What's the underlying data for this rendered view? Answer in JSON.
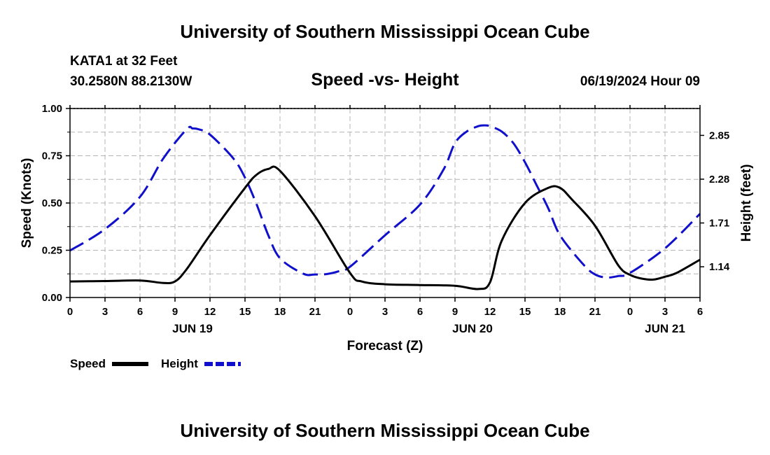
{
  "page": {
    "title": "University of Southern Mississippi Ocean Cube",
    "footer_title": "University of Southern Mississippi Ocean Cube",
    "station": "KATA1 at 32 Feet",
    "coords": "30.2580N  88.2130W",
    "datetime": "06/19/2024 Hour 09"
  },
  "chart_data": {
    "type": "line",
    "title": "Speed -vs- Height",
    "xlabel": "Forecast (Z)",
    "ylabel": "Speed (Knots)",
    "y2label": "Height (feet)",
    "x_range_hours": [
      0,
      54
    ],
    "x_tick_labels": [
      "0",
      "3",
      "6",
      "9",
      "12",
      "15",
      "18",
      "21",
      "0",
      "3",
      "6",
      "9",
      "12",
      "15",
      "18",
      "21",
      "0",
      "3",
      "6"
    ],
    "date_labels": [
      {
        "label": "JUN 19",
        "hour": 10.5
      },
      {
        "label": "JUN 20",
        "hour": 34.5
      },
      {
        "label": "JUN 21",
        "hour": 51
      }
    ],
    "ylim": [
      0,
      1.0
    ],
    "y_ticks": [
      "0.00",
      "0.25",
      "0.50",
      "0.75",
      "1.00"
    ],
    "y_tick_values": [
      0,
      0.25,
      0.5,
      0.75,
      1.0
    ],
    "y2lim": [
      0.74,
      3.2
    ],
    "y2_ticks": [
      "1.14",
      "1.71",
      "2.28",
      "2.85"
    ],
    "y2_tick_values": [
      1.14,
      1.71,
      2.28,
      2.85
    ],
    "series": [
      {
        "name": "Speed",
        "axis": "left",
        "color": "#000000",
        "dash": "solid",
        "x": [
          0,
          3,
          6,
          8,
          9,
          10,
          12,
          15,
          16,
          17,
          18,
          21,
          24,
          25,
          27,
          30,
          33,
          35,
          36,
          37,
          39,
          41,
          42,
          43,
          45,
          47,
          48,
          49,
          50,
          51,
          52,
          54
        ],
        "y": [
          0.085,
          0.087,
          0.09,
          0.077,
          0.085,
          0.15,
          0.33,
          0.58,
          0.65,
          0.68,
          0.67,
          0.43,
          0.13,
          0.085,
          0.07,
          0.066,
          0.062,
          0.045,
          0.08,
          0.3,
          0.5,
          0.58,
          0.58,
          0.52,
          0.38,
          0.17,
          0.12,
          0.1,
          0.095,
          0.11,
          0.13,
          0.2
        ]
      },
      {
        "name": "Height",
        "axis": "right",
        "color": "#1010cc",
        "dash": "dashed",
        "x": [
          0,
          3,
          6,
          8,
          10,
          10.5,
          11,
          12,
          14,
          15,
          16,
          17,
          18,
          20,
          21,
          22,
          23,
          24,
          27,
          30,
          32,
          33,
          34,
          35,
          35.5,
          36,
          37,
          38,
          39,
          40,
          41,
          42,
          44,
          45,
          46,
          47,
          48,
          51,
          54
        ],
        "y": [
          1.35,
          1.63,
          2.05,
          2.55,
          2.93,
          2.94,
          2.93,
          2.86,
          2.55,
          2.3,
          1.95,
          1.55,
          1.25,
          1.05,
          1.04,
          1.045,
          1.08,
          1.14,
          1.55,
          1.95,
          2.4,
          2.75,
          2.9,
          2.97,
          2.98,
          2.97,
          2.9,
          2.75,
          2.5,
          2.2,
          1.9,
          1.55,
          1.17,
          1.04,
          1.0,
          1.02,
          1.06,
          1.38,
          1.83
        ]
      }
    ],
    "legend": [
      {
        "label": "Speed",
        "color": "#000000",
        "dash": "solid"
      },
      {
        "label": "Height",
        "color": "#1010cc",
        "dash": "dashed"
      }
    ],
    "grid": true,
    "legend_position": "bottom-left"
  }
}
